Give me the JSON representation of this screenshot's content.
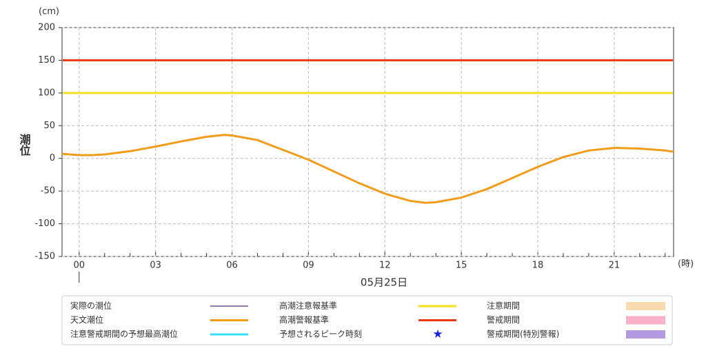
{
  "chart_data": {
    "type": "line",
    "y_unit": "(cm)",
    "x_unit": "(時)",
    "y_label": "潮位",
    "date_label": "05月25日",
    "xlim": [
      -0.67,
      23.33
    ],
    "ylim": [
      -150,
      200
    ],
    "xticks": [
      {
        "value": 0,
        "label": "00"
      },
      {
        "value": 3,
        "label": "03"
      },
      {
        "value": 6,
        "label": "06"
      },
      {
        "value": 9,
        "label": "09"
      },
      {
        "value": 12,
        "label": "12"
      },
      {
        "value": 15,
        "label": "15"
      },
      {
        "value": 18,
        "label": "18"
      },
      {
        "value": 21,
        "label": "21"
      }
    ],
    "yticks": [
      -150,
      -100,
      -50,
      0,
      50,
      100,
      150,
      200
    ],
    "grid": true,
    "series": [
      {
        "name": "実際の潮位",
        "color": "#4b2a7a",
        "kind": "thin-line"
      },
      {
        "name": "天文潮位",
        "color": "#f39c1a",
        "kind": "line",
        "x": [
          -0.67,
          0,
          0.5,
          1,
          2,
          3,
          4,
          5,
          5.7,
          6,
          7,
          8,
          9,
          10,
          11,
          12,
          13,
          13.6,
          14,
          15,
          16,
          17,
          18,
          19,
          20,
          21,
          22,
          23,
          23.33
        ],
        "values": [
          7,
          5,
          5,
          6,
          11,
          18,
          26,
          33,
          36,
          35,
          28,
          13,
          -2,
          -20,
          -38,
          -54,
          -65,
          -68,
          -67,
          -60,
          -47,
          -30,
          -13,
          2,
          12,
          16,
          15,
          12,
          10
        ]
      },
      {
        "name": "注意警戒期間の予想最高潮位",
        "color": "#33e0f0",
        "kind": "line"
      },
      {
        "name": "高潮注意報基準",
        "color": "#f2e21e",
        "kind": "level",
        "value": 100
      },
      {
        "name": "高潮警報基準",
        "color": "#ea3a14",
        "kind": "level",
        "value": 150
      },
      {
        "name": "予想されるピーク時刻",
        "color": "#1a22d8",
        "kind": "star"
      },
      {
        "name": "注意期間",
        "color": "#f9d9b0",
        "kind": "box"
      },
      {
        "name": "警戒期間",
        "color": "#f7b2c8",
        "kind": "box"
      },
      {
        "name": "警戒期間(特別警報)",
        "color": "#b39ae0",
        "kind": "box"
      }
    ]
  }
}
